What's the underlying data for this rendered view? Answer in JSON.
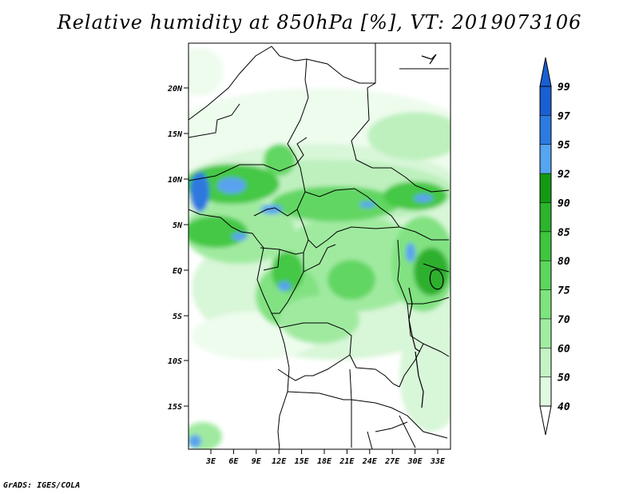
{
  "title": "Relative humidity at 850hPa [%], VT: 2019073106",
  "credit": "GrADS: IGES/COLA",
  "lat_labels": [
    "20N",
    "15N",
    "10N",
    "5N",
    "EQ",
    "5S",
    "10S",
    "15S"
  ],
  "lon_labels": [
    "3E",
    "6E",
    "9E",
    "12E",
    "15E",
    "18E",
    "21E",
    "24E",
    "27E",
    "30E",
    "33E"
  ],
  "colorbar": {
    "labels": [
      "99",
      "97",
      "95",
      "92",
      "90",
      "85",
      "80",
      "75",
      "70",
      "60",
      "50",
      "40"
    ],
    "colors": [
      "#1a5fd4",
      "#2c7be0",
      "#55a5f0",
      "#139a13",
      "#2cb42c",
      "#3ec63e",
      "#5cd65c",
      "#7ee47e",
      "#a2eca2",
      "#c4f4c4",
      "#e0fae0",
      "#f4fff4"
    ]
  },
  "map_palette": {
    "c40": "#eefcee",
    "c50": "#d8f6d8",
    "c60": "#bdf0bd",
    "c70": "#a0eaa0",
    "c75": "#82e282",
    "c80": "#62d662",
    "c85": "#45c845",
    "c90": "#2db02d",
    "c92": "#1a9a1a",
    "c95": "#5aa2f0",
    "c97": "#2f78e0"
  }
}
